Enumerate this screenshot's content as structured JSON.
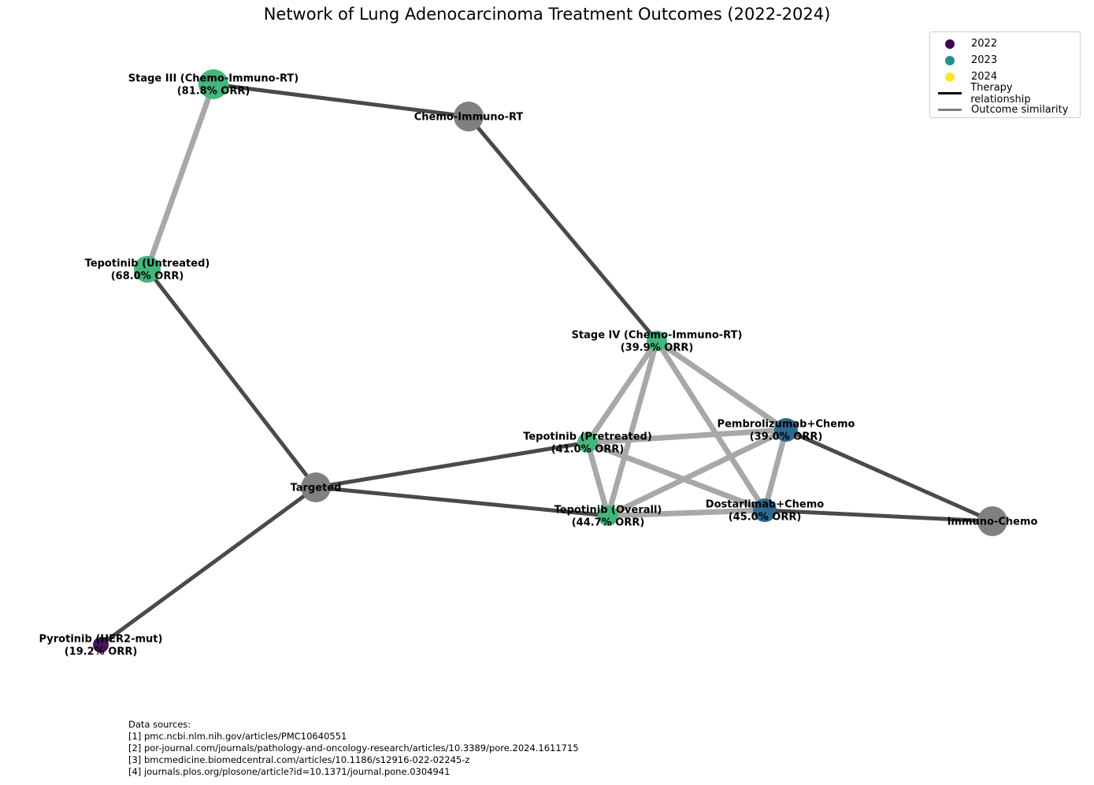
{
  "title": "Network of Lung Adenocarcinoma Treatment Outcomes (2022-2024)",
  "colors": {
    "edge_therapy": "#4a4a4a",
    "edge_similarity": "#a8a8a8",
    "hub": "#808080",
    "study_green": "#43b67c",
    "study_blue": "#2f6a8e",
    "study_purple": "#45135a"
  },
  "legend": {
    "items": [
      {
        "label": "2022",
        "type": "dot",
        "color": "#440154"
      },
      {
        "label": "2023",
        "type": "dot",
        "color": "#21918c"
      },
      {
        "label": "2024",
        "type": "dot",
        "color": "#fde725"
      },
      {
        "label": "Therapy relationship",
        "type": "line",
        "color": "#000000"
      },
      {
        "label": "Outcome similarity",
        "type": "line",
        "color": "#808080"
      }
    ]
  },
  "nodes": [
    {
      "id": "stage3",
      "label": [
        "Stage III (Chemo-Immuno-RT)",
        "(81.8% ORR)"
      ],
      "kind": "study",
      "color": "#43b67c"
    },
    {
      "id": "chemo-immuno-rt",
      "label": [
        "Chemo-Immuno-RT"
      ],
      "kind": "hub",
      "color": "#808080"
    },
    {
      "id": "tep-untreated",
      "label": [
        "Tepotinib (Untreated)",
        "(68.0% ORR)"
      ],
      "kind": "study",
      "color": "#43b67c"
    },
    {
      "id": "stage4",
      "label": [
        "Stage IV (Chemo-Immuno-RT)",
        "(39.9% ORR)"
      ],
      "kind": "study",
      "color": "#43b67c"
    },
    {
      "id": "tep-pretreated",
      "label": [
        "Tepotinib (Pretreated)",
        "(41.0% ORR)"
      ],
      "kind": "study",
      "color": "#43b67c"
    },
    {
      "id": "pembro",
      "label": [
        "Pembrolizumab+Chemo",
        "(39.0% ORR)"
      ],
      "kind": "study",
      "color": "#2f6a8e"
    },
    {
      "id": "targeted",
      "label": [
        "Targeted"
      ],
      "kind": "hub",
      "color": "#808080"
    },
    {
      "id": "tep-overall",
      "label": [
        "Tepotinib (Overall)",
        "(44.7% ORR)"
      ],
      "kind": "study",
      "color": "#43b67c"
    },
    {
      "id": "dostarlimab",
      "label": [
        "Dostarlimab+Chemo",
        "(45.0% ORR)"
      ],
      "kind": "study",
      "color": "#2f6a8e"
    },
    {
      "id": "immuno-chemo",
      "label": [
        "Immuno-Chemo"
      ],
      "kind": "hub",
      "color": "#808080"
    },
    {
      "id": "pyrotinib",
      "label": [
        "Pyrotinib (HER2-mut)",
        "(19.2% ORR)"
      ],
      "kind": "study",
      "color": "#45135a"
    }
  ],
  "edges": [
    {
      "source": "stage3",
      "target": "tep-untreated",
      "type": "similarity"
    },
    {
      "source": "stage4",
      "target": "tep-pretreated",
      "type": "similarity"
    },
    {
      "source": "stage4",
      "target": "tep-overall",
      "type": "similarity"
    },
    {
      "source": "stage4",
      "target": "pembro",
      "type": "similarity"
    },
    {
      "source": "stage4",
      "target": "dostarlimab",
      "type": "similarity"
    },
    {
      "source": "tep-pretreated",
      "target": "pembro",
      "type": "similarity"
    },
    {
      "source": "tep-pretreated",
      "target": "tep-overall",
      "type": "similarity"
    },
    {
      "source": "tep-pretreated",
      "target": "dostarlimab",
      "type": "similarity"
    },
    {
      "source": "tep-overall",
      "target": "pembro",
      "type": "similarity"
    },
    {
      "source": "tep-overall",
      "target": "dostarlimab",
      "type": "similarity"
    },
    {
      "source": "pembro",
      "target": "dostarlimab",
      "type": "similarity"
    },
    {
      "source": "stage3",
      "target": "chemo-immuno-rt",
      "type": "therapy"
    },
    {
      "source": "chemo-immuno-rt",
      "target": "stage4",
      "type": "therapy"
    },
    {
      "source": "tep-untreated",
      "target": "targeted",
      "type": "therapy"
    },
    {
      "source": "targeted",
      "target": "tep-pretreated",
      "type": "therapy"
    },
    {
      "source": "targeted",
      "target": "tep-overall",
      "type": "therapy"
    },
    {
      "source": "targeted",
      "target": "pyrotinib",
      "type": "therapy"
    },
    {
      "source": "pembro",
      "target": "immuno-chemo",
      "type": "therapy"
    },
    {
      "source": "dostarlimab",
      "target": "immuno-chemo",
      "type": "therapy"
    }
  ],
  "sources": {
    "heading": "Data sources:",
    "lines": [
      "[1] pmc.ncbi.nlm.nih.gov/articles/PMC10640551",
      "[2] por-journal.com/journals/pathology-and-oncology-research/articles/10.3389/pore.2024.1611715",
      "[3] bmcmedicine.biomedcentral.com/articles/10.1186/s12916-022-02245-z",
      "[4] journals.plos.org/plosone/article?id=10.1371/journal.pone.0304941"
    ]
  }
}
